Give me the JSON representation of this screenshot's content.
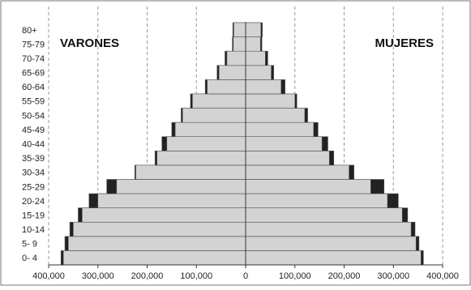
{
  "chart_data": {
    "type": "bar",
    "orientation": "horizontal",
    "layout": "population-pyramid",
    "side_labels": {
      "left": "VARONES",
      "right": "MUJERES"
    },
    "age_groups": [
      "0- 4",
      "5- 9",
      "10-14",
      "15-19",
      "20-24",
      "25-29",
      "30-34",
      "35-39",
      "40-44",
      "45-49",
      "50-54",
      "55-59",
      "60-64",
      "65-69",
      "70-74",
      "75-79",
      "80+"
    ],
    "series": [
      {
        "name": "base",
        "color": "#d3d3d3",
        "male": [
          370000,
          360000,
          350000,
          332000,
          300000,
          262000,
          223000,
          180000,
          160000,
          143000,
          128000,
          108000,
          78000,
          54000,
          38000,
          25000,
          24000
        ],
        "female": [
          356000,
          346000,
          336000,
          318000,
          288000,
          254000,
          210000,
          170000,
          155000,
          138000,
          120000,
          100000,
          72000,
          52000,
          40000,
          30000,
          31000
        ]
      },
      {
        "name": "overlay",
        "color": "#222222",
        "male": [
          375000,
          367000,
          357000,
          340000,
          318000,
          282000,
          225000,
          184000,
          170000,
          150000,
          131000,
          112000,
          82000,
          58000,
          42000,
          27000,
          26000
        ],
        "female": [
          361000,
          352000,
          344000,
          329000,
          310000,
          281000,
          220000,
          179000,
          167000,
          147000,
          126000,
          104000,
          80000,
          57000,
          45000,
          33000,
          34000
        ]
      }
    ],
    "x_axis": {
      "ticks": [
        -400000,
        -300000,
        -200000,
        -100000,
        0,
        100000,
        200000,
        300000,
        400000
      ],
      "tick_labels": [
        "400,000",
        "300,000",
        "200,000",
        "100,000",
        "0",
        "100,000",
        "200,000",
        "300,000",
        "400,000"
      ],
      "range": [
        -400000,
        400000
      ]
    },
    "grid": {
      "vertical": true,
      "style": "dashed"
    },
    "colors": {
      "base_fill": "#d3d3d3",
      "overlay_fill": "#222222",
      "bar_stroke": "#555555",
      "axis": "#333333",
      "grid": "#999999",
      "frame": "#777777"
    }
  }
}
